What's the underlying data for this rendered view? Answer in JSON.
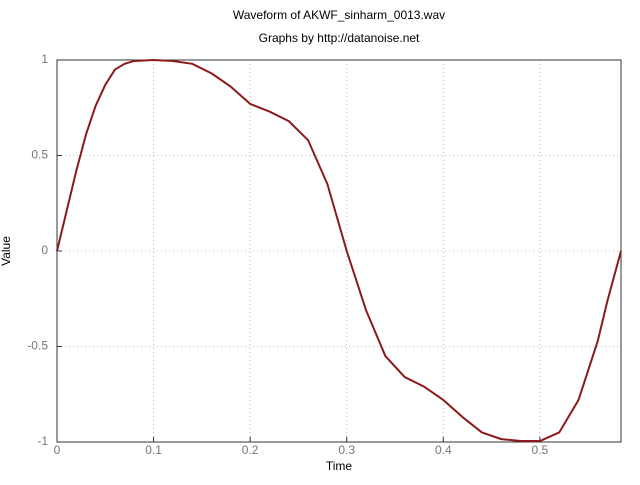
{
  "chart_data": {
    "type": "line",
    "title": "Waveform of AKWF_sinharm_0013.wav",
    "subtitle": "Graphs by http://datanoise.net",
    "x_label": "Time",
    "y_label": "Value",
    "x": [
      0,
      0.01,
      0.02,
      0.03,
      0.04,
      0.05,
      0.06,
      0.07,
      0.08,
      0.1,
      0.12,
      0.14,
      0.16,
      0.18,
      0.2,
      0.22,
      0.24,
      0.26,
      0.28,
      0.3,
      0.32,
      0.34,
      0.36,
      0.38,
      0.4,
      0.42,
      0.44,
      0.46,
      0.48,
      0.5,
      0.52,
      0.54,
      0.56,
      0.57,
      0.584
    ],
    "series": [
      {
        "name": "Value",
        "color": "#8b1a1a",
        "values": [
          0,
          0.21,
          0.42,
          0.61,
          0.76,
          0.87,
          0.95,
          0.98,
          0.995,
          1.0,
          0.995,
          0.98,
          0.93,
          0.86,
          0.77,
          0.73,
          0.68,
          0.58,
          0.35,
          0.0,
          -0.31,
          -0.55,
          -0.66,
          -0.71,
          -0.78,
          -0.87,
          -0.95,
          -0.985,
          -0.995,
          -0.995,
          -0.95,
          -0.78,
          -0.47,
          -0.26,
          0
        ]
      }
    ],
    "xlim": [
      0,
      0.584
    ],
    "ylim": [
      -1,
      1
    ],
    "xticks": [
      0,
      0.1,
      0.2,
      0.3,
      0.4,
      0.5
    ],
    "yticks": [
      -1,
      -0.5,
      0,
      0.5,
      1
    ],
    "grid": true
  }
}
